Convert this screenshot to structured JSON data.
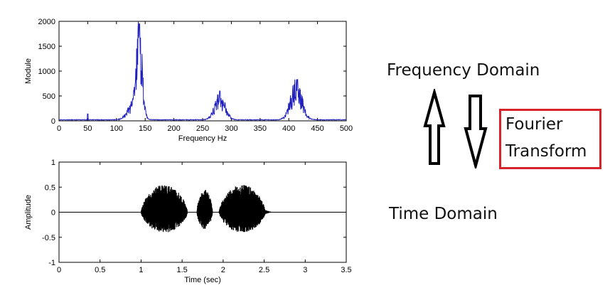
{
  "chart_data": [
    {
      "type": "line",
      "xlabel": "Frequency Hz",
      "ylabel": "Module",
      "xlim": [
        0,
        500
      ],
      "ylim": [
        0,
        2000
      ],
      "xticks": [
        0,
        50,
        100,
        150,
        200,
        250,
        300,
        350,
        400,
        450,
        500
      ],
      "yticks": [
        0,
        500,
        1000,
        1500,
        2000
      ],
      "color": "#1f1fbf",
      "peaks": [
        {
          "frequency_hz": 50,
          "value": 140
        },
        {
          "frequency_hz": 140,
          "value": 1950
        },
        {
          "frequency_hz": 280,
          "value": 600
        },
        {
          "frequency_hz": 415,
          "value": 830
        }
      ]
    },
    {
      "type": "line",
      "xlabel": "Time (sec)",
      "ylabel": "Amplitude",
      "xlim": [
        0,
        3.5
      ],
      "ylim": [
        -1,
        1
      ],
      "xticks": [
        0,
        0.5,
        1,
        1.5,
        2,
        2.5,
        3,
        3.5
      ],
      "yticks": [
        -1,
        -0.5,
        0,
        0.5,
        1
      ],
      "color": "#000000",
      "bursts": [
        {
          "start_sec": 1.0,
          "end_sec": 1.65,
          "peak_amplitude": 0.55
        },
        {
          "start_sec": 1.68,
          "end_sec": 1.9,
          "peak_amplitude": 0.45
        },
        {
          "start_sec": 1.95,
          "end_sec": 2.6,
          "peak_amplitude": 0.55
        }
      ]
    }
  ],
  "labels": {
    "frequency_domain": "Frequency Domain",
    "time_domain": "Time Domain",
    "fourier_line1": "Fourier",
    "fourier_line2": "Transform"
  }
}
